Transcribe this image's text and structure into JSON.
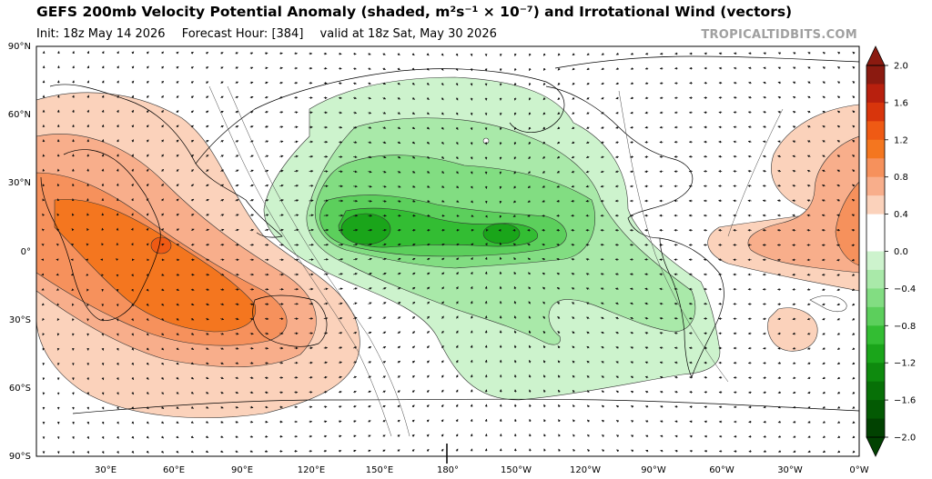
{
  "header": {
    "title": "GEFS 200mb Velocity Potential Anomaly (shaded, m²s⁻¹ × 10⁻⁷) and Irrotational Wind (vectors)",
    "init": "Init: 18z May 14 2026",
    "forecast_hour": "Forecast Hour: [384]",
    "valid": "valid at 18z Sat, May 30 2026",
    "brand": "TROPICALTIDBITS.COM"
  },
  "map": {
    "lat_labels": [
      "90°N",
      "60°N",
      "30°N",
      "0°",
      "30°S",
      "60°S",
      "90°S"
    ],
    "lon_labels": [
      "30°E",
      "60°E",
      "90°E",
      "120°E",
      "150°E",
      "180°",
      "150°W",
      "120°W",
      "90°W",
      "60°W",
      "30°W",
      "0°W"
    ],
    "background": "#ffffff"
  },
  "colorbar": {
    "labels": [
      "2.0",
      "1.6",
      "1.2",
      "0.8",
      "0.4",
      "0.0",
      "−0.4",
      "−0.8",
      "−1.2",
      "−1.6",
      "−2.0"
    ],
    "colors_top_to_bottom": [
      "#8b1a10",
      "#b8200e",
      "#d8350c",
      "#ef5a14",
      "#f4761f",
      "#f6915c",
      "#f8ae8b",
      "#fbd2bb",
      "#ffffff",
      "#ffffff",
      "#cdf3cd",
      "#a9e9a9",
      "#82dd82",
      "#5ccf5c",
      "#33bd33",
      "#1aa51a",
      "#0e8a0e",
      "#077007",
      "#035a03",
      "#014201"
    ]
  }
}
